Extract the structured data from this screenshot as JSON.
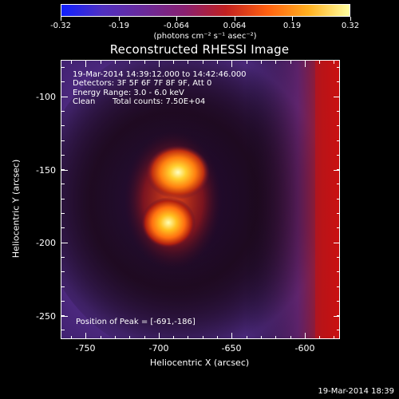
{
  "colorbar": {
    "tick_labels": [
      "-0.32",
      "-0.19",
      "-0.064",
      "0.064",
      "0.19",
      "0.32"
    ],
    "units_label": "(photons cm⁻² s⁻¹ asec⁻²)",
    "colors": [
      "#1020ff",
      "#5030c0",
      "#6a2a9a",
      "#8a2070",
      "#c02020",
      "#ff6010",
      "#ffb020",
      "#ffffa0"
    ]
  },
  "title": "Reconstructed RHESSI Image",
  "annotations": {
    "time_range": "19-Mar-2014 14:39:12.000 to 14:42:46.000",
    "detectors": "Detectors: 3F 5F 6F 7F 8F 9F, Att 0",
    "energy_range": "Energy Range: 3.0 - 6.0 keV",
    "method": "Clean",
    "total_counts": "Total counts: 7.50E+04",
    "peak_position": "Position of Peak = [-691,-186]"
  },
  "axes": {
    "xlabel": "Heliocentric X (arcsec)",
    "ylabel": "Heliocentric Y (arcsec)",
    "x_ticks": [
      "-750",
      "-700",
      "-650",
      "-600"
    ],
    "y_ticks": [
      "-100",
      "-150",
      "-200",
      "-250"
    ]
  },
  "footer": "19-Mar-2014 18:39"
}
